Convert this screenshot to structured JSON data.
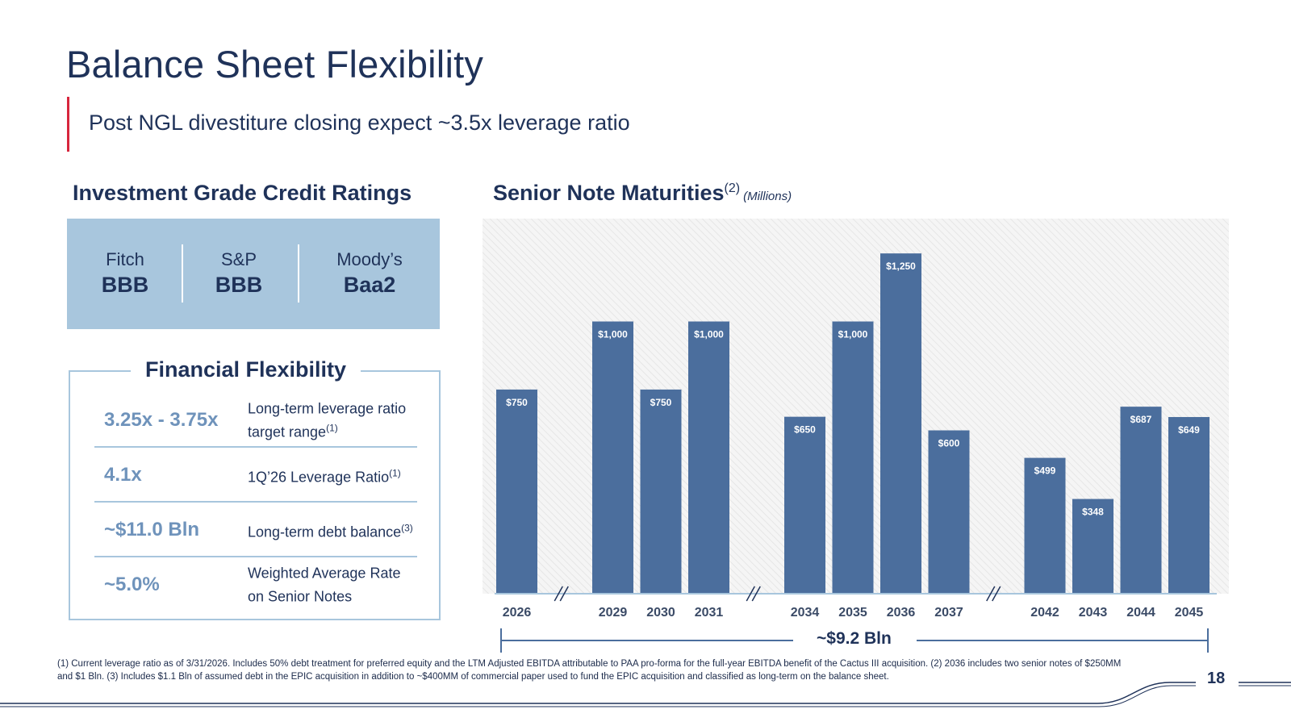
{
  "slide": {
    "title": "Balance Sheet Flexibility",
    "subtitle": "Post NGL divestiture closing expect ~3.5x leverage ratio",
    "page_number": "18",
    "colors": {
      "navy": "#1f3259",
      "accent_red": "#d7263d",
      "light_blue": "#a8c6dd",
      "bar_blue": "#4b6e9d"
    }
  },
  "ratings": {
    "heading": "Investment Grade Credit Ratings",
    "items": [
      {
        "agency": "Fitch",
        "grade": "BBB"
      },
      {
        "agency": "S&P",
        "grade": "BBB"
      },
      {
        "agency": "Moody’s",
        "grade": "Baa2"
      }
    ]
  },
  "flexibility": {
    "heading": "Financial Flexibility",
    "rows": [
      {
        "metric": "3.25x - 3.75x",
        "desc": "Long-term leverage ratio target range",
        "note": "(1)"
      },
      {
        "metric": "4.1x",
        "desc": "1Q’26 Leverage Ratio",
        "note": "(1)"
      },
      {
        "metric": "~$11.0 Bln",
        "desc": "Long-term debt balance",
        "note": "(3)"
      },
      {
        "metric": "~5.0%",
        "desc": "Weighted Average Rate on Senior Notes",
        "note": ""
      }
    ]
  },
  "chart_data": {
    "type": "bar",
    "title": "Senior Note Maturities",
    "title_note": "(2)",
    "units": "(Millions)",
    "categories": [
      "2026",
      "2029",
      "2030",
      "2031",
      "2034",
      "2035",
      "2036",
      "2037",
      "2042",
      "2043",
      "2044",
      "2045"
    ],
    "values": [
      750,
      1000,
      750,
      1000,
      650,
      1000,
      1250,
      600,
      499,
      348,
      687,
      649
    ],
    "data_labels": [
      "$750",
      "$1,000",
      "$750",
      "$1,000",
      "$650",
      "$1,000",
      "$1,250",
      "$600",
      "$499",
      "$348",
      "$687",
      "$649"
    ],
    "axis_breaks_after": [
      "2026",
      "2031",
      "2037"
    ],
    "ylim": [
      0,
      1300
    ],
    "y_axis_shown": false,
    "grid": false,
    "background": "hatched",
    "total_label": "~$9.2 Bln",
    "bar_color": "#4b6e9d"
  },
  "footnote": "(1) Current leverage ratio as of 3/31/2026. Includes 50% debt treatment for preferred equity and the LTM Adjusted EBITDA attributable to PAA pro-forma for the full-year EBITDA benefit of the Cactus III acquisition. (2) 2036 includes two senior notes of $250MM and $1 Bln. (3) Includes $1.1 Bln of assumed debt in the EPIC acquisition in addition to ~$400MM of commercial paper used to fund the EPIC acquisition and classified as long-term on the balance sheet."
}
